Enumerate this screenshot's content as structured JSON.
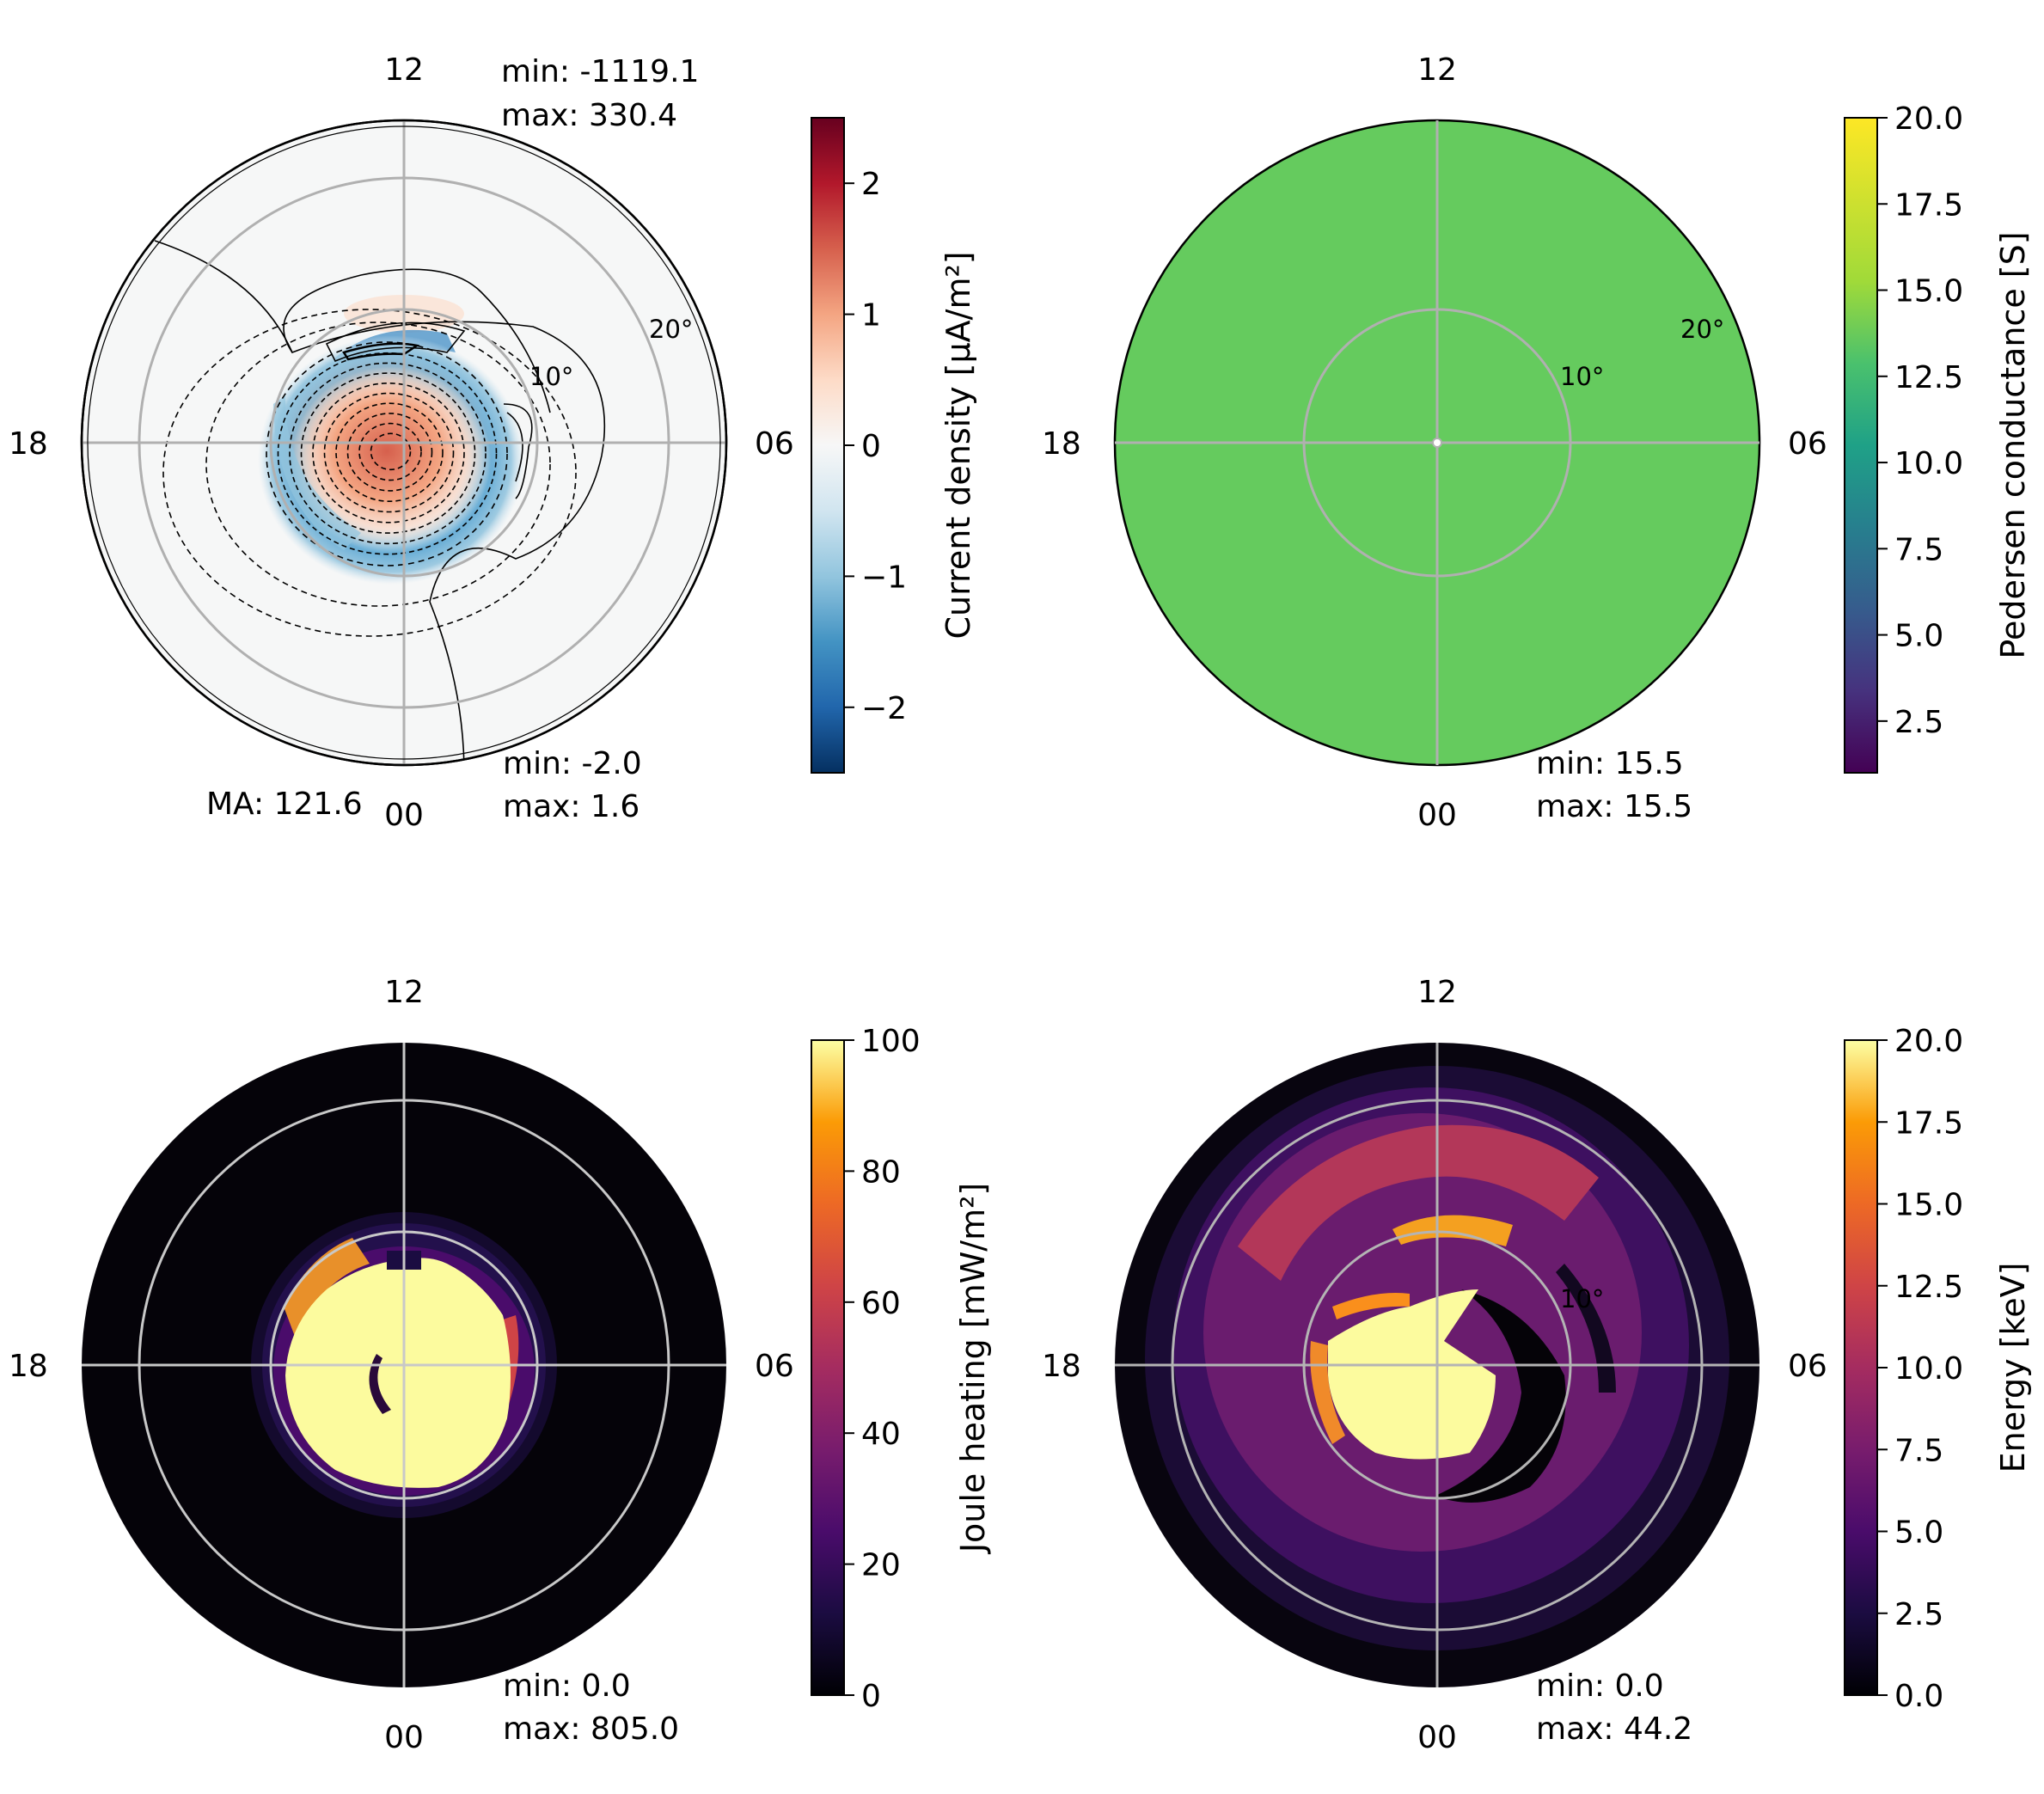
{
  "chart_data": [
    {
      "type": "heatmap",
      "projection": "polar",
      "title": "",
      "clock_labels": {
        "top": "12",
        "left": "18",
        "right": "06",
        "bottom": "00"
      },
      "ring_labels": [
        "10°",
        "20°"
      ],
      "colorbar": {
        "label": "Current density [μA/m²]",
        "colormap": "RdBu_r",
        "range": [
          -2.5,
          2.5
        ],
        "ticks": [
          -2,
          -1,
          0,
          1,
          2
        ],
        "tick_labels": [
          "−2",
          "−1",
          "0",
          "1",
          "2"
        ]
      },
      "contour_stats": {
        "min": "min: -1119.1",
        "max": "max: 330.4"
      },
      "stats": {
        "min": "min: -2.0",
        "max": "max: 1.6"
      },
      "annotation": "MA: 121.6"
    },
    {
      "type": "heatmap",
      "projection": "polar",
      "title": "",
      "clock_labels": {
        "top": "12",
        "left": "18",
        "right": "06",
        "bottom": "00"
      },
      "ring_labels": [
        "10°",
        "20°"
      ],
      "uniform_value": 15.5,
      "colorbar": {
        "label": "Pedersen conductance [S]",
        "colormap": "viridis",
        "range": [
          1.0,
          20.0
        ],
        "ticks": [
          2.5,
          5.0,
          7.5,
          10.0,
          12.5,
          15.0,
          17.5,
          20.0
        ],
        "tick_labels": [
          "2.5",
          "5.0",
          "7.5",
          "10.0",
          "12.5",
          "15.0",
          "17.5",
          "20.0"
        ]
      },
      "stats": {
        "min": "min: 15.5",
        "max": "max: 15.5"
      }
    },
    {
      "type": "heatmap",
      "projection": "polar",
      "title": "",
      "clock_labels": {
        "top": "12",
        "left": "18",
        "right": "06",
        "bottom": "00"
      },
      "ring_labels": [],
      "colorbar": {
        "label": "Joule heating [mW/m²]",
        "colormap": "inferno",
        "range": [
          0,
          100
        ],
        "ticks": [
          0,
          20,
          40,
          60,
          80,
          100
        ],
        "tick_labels": [
          "0",
          "20",
          "40",
          "60",
          "80",
          "100"
        ]
      },
      "stats": {
        "min": "min: 0.0",
        "max": "max: 805.0"
      }
    },
    {
      "type": "heatmap",
      "projection": "polar",
      "title": "",
      "clock_labels": {
        "top": "12",
        "left": "18",
        "right": "06",
        "bottom": "00"
      },
      "ring_labels": [
        "10°"
      ],
      "colorbar": {
        "label": "Energy [keV]",
        "colormap": "inferno",
        "range": [
          0,
          20
        ],
        "ticks": [
          0.0,
          2.5,
          5.0,
          7.5,
          10.0,
          12.5,
          15.0,
          17.5,
          20.0
        ],
        "tick_labels": [
          "0.0",
          "2.5",
          "5.0",
          "7.5",
          "10.0",
          "12.5",
          "15.0",
          "17.5",
          "20.0"
        ]
      },
      "stats": {
        "min": "min: 0.0",
        "max": "max: 44.2"
      }
    }
  ]
}
